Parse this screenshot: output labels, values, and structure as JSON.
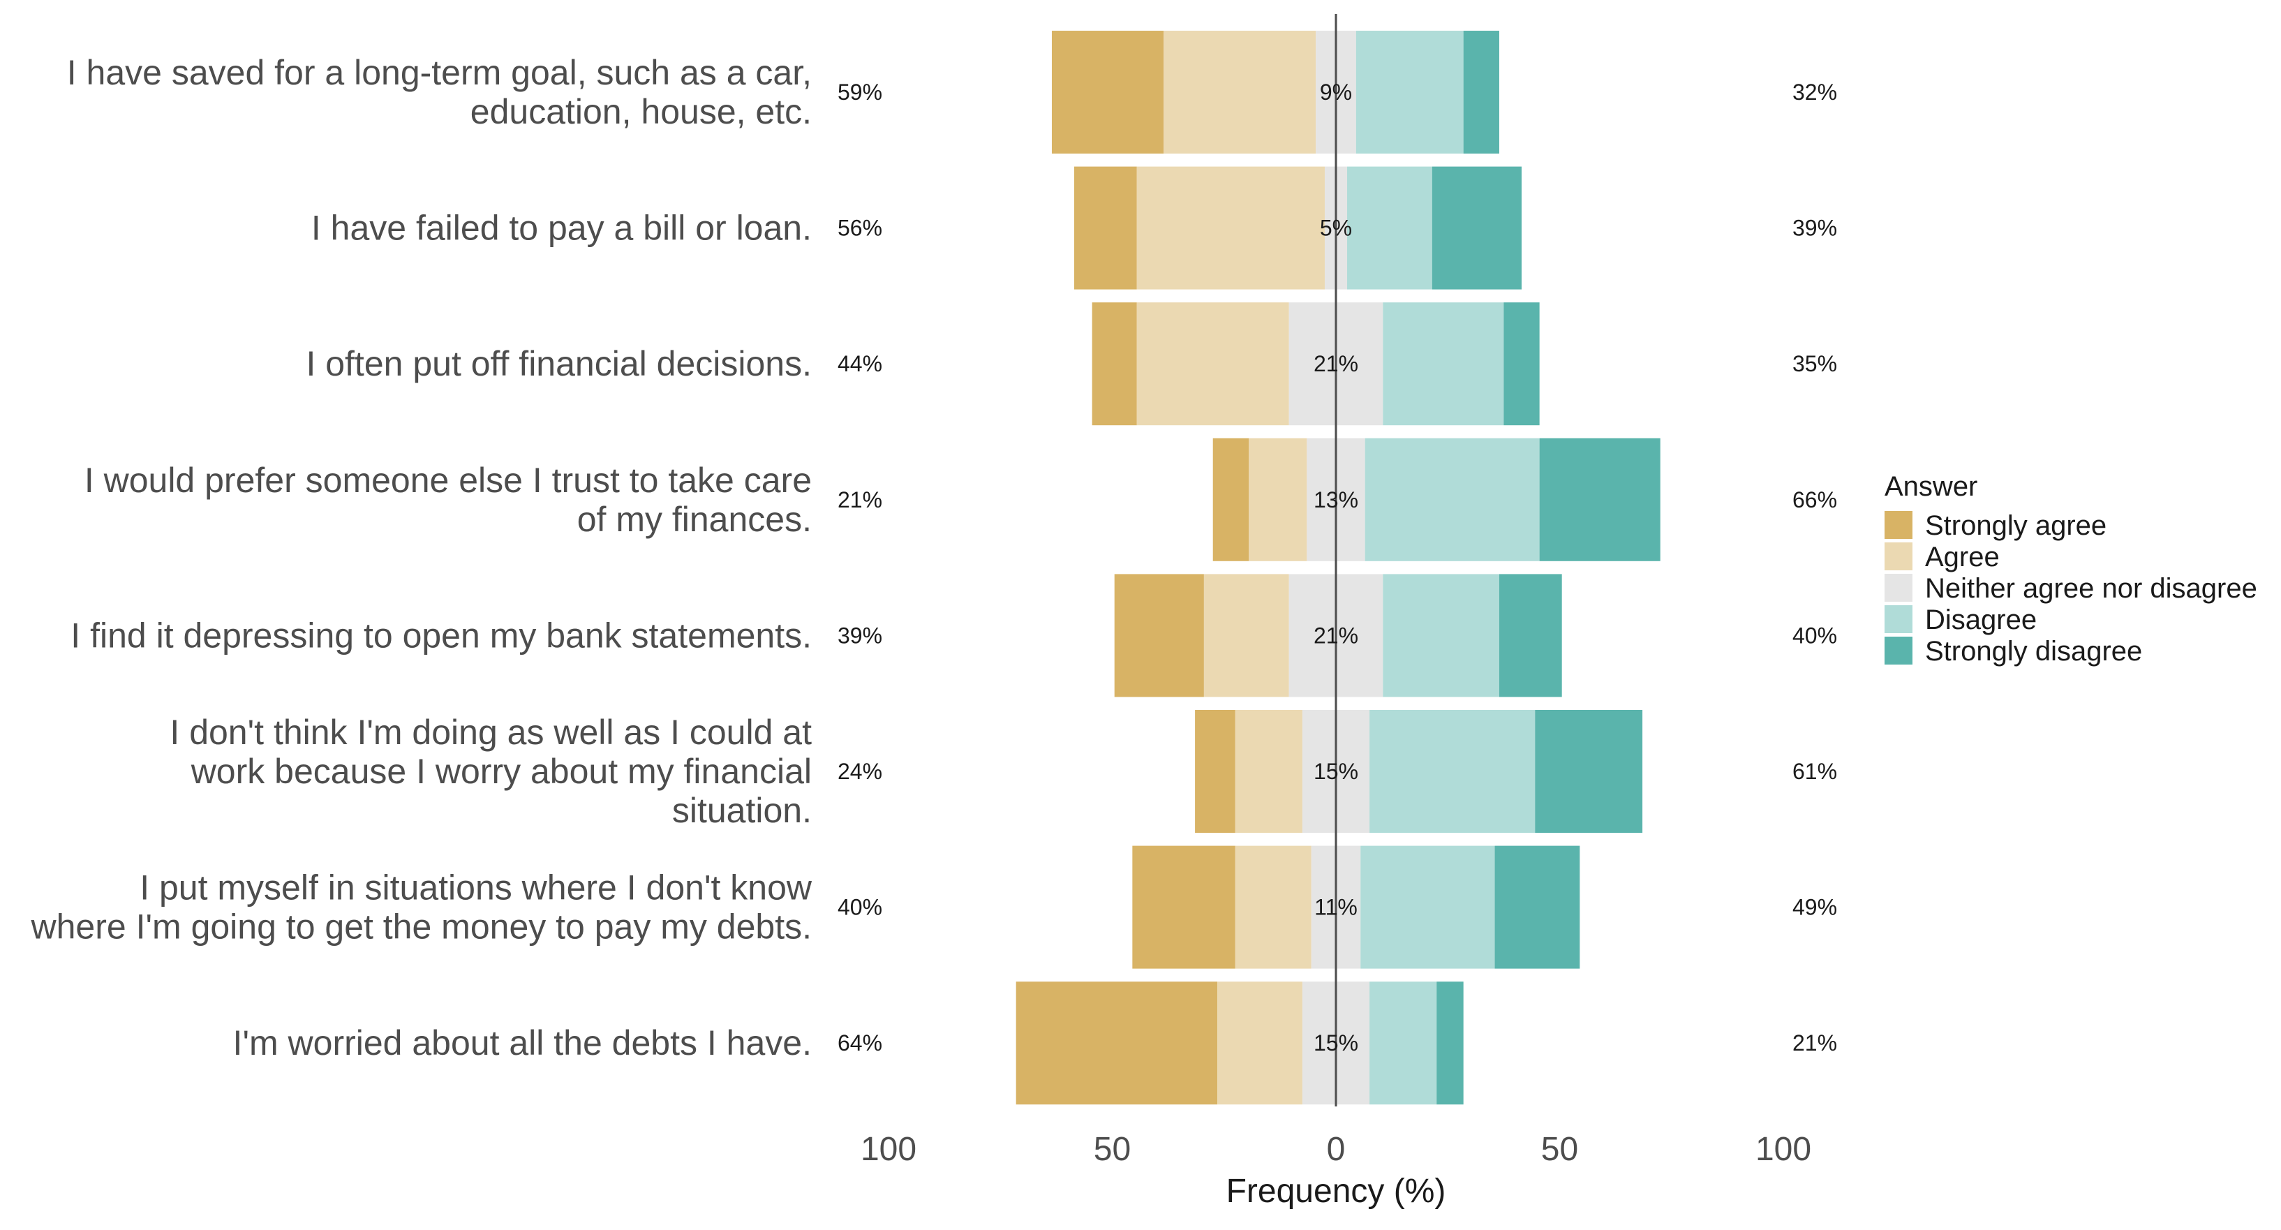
{
  "chart_data": {
    "type": "bar",
    "orientation": "horizontal-diverging",
    "xlabel": "Frequency (%)",
    "xlim": [
      -100,
      100
    ],
    "x_ticks": [
      {
        "value": -100,
        "label": "100"
      },
      {
        "value": -50,
        "label": "50"
      },
      {
        "value": 0,
        "label": "0"
      },
      {
        "value": 50,
        "label": "50"
      },
      {
        "value": 100,
        "label": "100"
      }
    ],
    "legend": {
      "title": "Answer",
      "placement": "right",
      "entries": [
        {
          "key": "strongly_agree",
          "label": "Strongly agree",
          "color": "#d8b365"
        },
        {
          "key": "agree",
          "label": "Agree",
          "color": "#ebd9b2"
        },
        {
          "key": "neither",
          "label": "Neither agree nor disagree",
          "color": "#e5e5e5"
        },
        {
          "key": "disagree",
          "label": "Disagree",
          "color": "#b0dcd8"
        },
        {
          "key": "strongly_disagree",
          "label": "Strongly disagree",
          "color": "#5ab4ac"
        }
      ]
    },
    "categories": [
      {
        "lines": [
          "I have saved for a long-term goal, such as a car,",
          "education, house, etc."
        ],
        "values": {
          "strongly_agree": 25,
          "agree": 34,
          "neither": 9,
          "disagree": 24,
          "strongly_disagree": 8
        },
        "left_label": "59%",
        "center_label": "9%",
        "right_label": "32%"
      },
      {
        "lines": [
          "I have failed to pay a bill or loan."
        ],
        "values": {
          "strongly_agree": 14,
          "agree": 42,
          "neither": 5,
          "disagree": 19,
          "strongly_disagree": 20
        },
        "left_label": "56%",
        "center_label": "5%",
        "right_label": "39%"
      },
      {
        "lines": [
          "I often put off financial decisions."
        ],
        "values": {
          "strongly_agree": 10,
          "agree": 34,
          "neither": 21,
          "disagree": 27,
          "strongly_disagree": 8
        },
        "left_label": "44%",
        "center_label": "21%",
        "right_label": "35%"
      },
      {
        "lines": [
          "I would prefer someone else I trust to take care",
          "of my finances."
        ],
        "values": {
          "strongly_agree": 8,
          "agree": 13,
          "neither": 13,
          "disagree": 39,
          "strongly_disagree": 27
        },
        "left_label": "21%",
        "center_label": "13%",
        "right_label": "66%"
      },
      {
        "lines": [
          "I find it depressing to open my bank statements."
        ],
        "values": {
          "strongly_agree": 20,
          "agree": 19,
          "neither": 21,
          "disagree": 26,
          "strongly_disagree": 14
        },
        "left_label": "39%",
        "center_label": "21%",
        "right_label": "40%"
      },
      {
        "lines": [
          "I don't think I'm doing as well as I could at",
          "work because I worry about my financial",
          "situation."
        ],
        "values": {
          "strongly_agree": 9,
          "agree": 15,
          "neither": 15,
          "disagree": 37,
          "strongly_disagree": 24
        },
        "left_label": "24%",
        "center_label": "15%",
        "right_label": "61%"
      },
      {
        "lines": [
          "I put myself in situations where I don't know",
          "where I'm going to get the money to pay my debts."
        ],
        "values": {
          "strongly_agree": 23,
          "agree": 17,
          "neither": 11,
          "disagree": 30,
          "strongly_disagree": 19
        },
        "left_label": "40%",
        "center_label": "11%",
        "right_label": "49%"
      },
      {
        "lines": [
          "I'm worried about all the debts I have."
        ],
        "values": {
          "strongly_agree": 45,
          "agree": 19,
          "neither": 15,
          "disagree": 15,
          "strongly_disagree": 6
        },
        "left_label": "64%",
        "center_label": "15%",
        "right_label": "21%"
      }
    ]
  }
}
